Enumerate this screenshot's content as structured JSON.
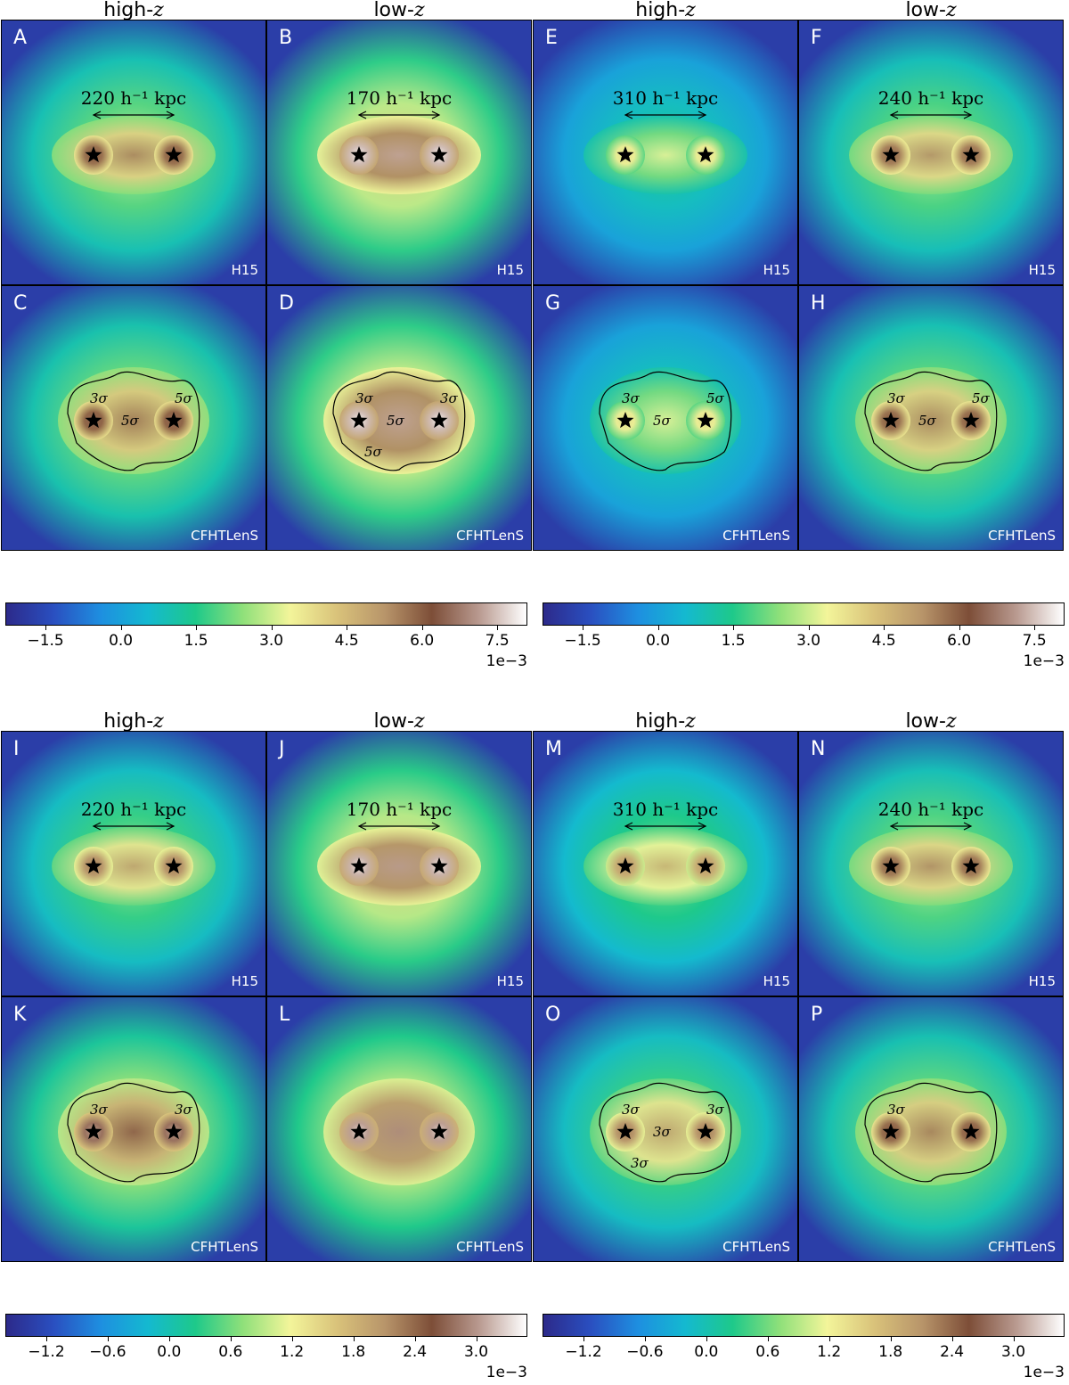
{
  "chart_data": [
    {
      "type": "heatmap",
      "group": "top-left",
      "column_titles": [
        "high-z",
        "low-z"
      ],
      "panels": [
        {
          "letter": "A",
          "source": "H15",
          "separation_label": "220 h⁻¹ kpc",
          "peak": 6.2,
          "contours": []
        },
        {
          "letter": "B",
          "source": "H15",
          "separation_label": "170 h⁻¹ kpc",
          "peak": 8.0,
          "contours": []
        },
        {
          "letter": "C",
          "source": "CFHTLenS",
          "peak": 6.4,
          "contours": [
            "3σ",
            "5σ",
            "5σ"
          ]
        },
        {
          "letter": "D",
          "source": "CFHTLenS",
          "peak": 8.0,
          "contours": [
            "3σ",
            "3σ",
            "5σ",
            "5σ"
          ]
        }
      ],
      "colorbar": {
        "ticks": [
          -1.5,
          0.0,
          1.5,
          3.0,
          4.5,
          6.0,
          7.5
        ],
        "tick_labels": [
          "−1.5",
          "0.0",
          "1.5",
          "3.0",
          "4.5",
          "6.0",
          "7.5"
        ],
        "range": [
          -2.3,
          8.1
        ],
        "offset": "1e−3"
      }
    },
    {
      "type": "heatmap",
      "group": "top-right",
      "column_titles": [
        "high-z",
        "low-z"
      ],
      "panels": [
        {
          "letter": "E",
          "source": "H15",
          "separation_label": "310 h⁻¹ kpc",
          "peak": 3.8,
          "contours": []
        },
        {
          "letter": "F",
          "source": "H15",
          "separation_label": "240 h⁻¹ kpc",
          "peak": 6.0,
          "contours": []
        },
        {
          "letter": "G",
          "source": "CFHTLenS",
          "peak": 3.8,
          "contours": [
            "3σ",
            "5σ",
            "5σ"
          ]
        },
        {
          "letter": "H",
          "source": "CFHTLenS",
          "peak": 6.2,
          "contours": [
            "3σ",
            "5σ",
            "5σ"
          ]
        }
      ],
      "colorbar": {
        "ticks": [
          -1.5,
          0.0,
          1.5,
          3.0,
          4.5,
          6.0,
          7.5
        ],
        "tick_labels": [
          "−1.5",
          "0.0",
          "1.5",
          "3.0",
          "4.5",
          "6.0",
          "7.5"
        ],
        "range": [
          -2.3,
          8.1
        ],
        "offset": "1e−3"
      }
    },
    {
      "type": "heatmap",
      "group": "bottom-left",
      "column_titles": [
        "high-z",
        "low-z"
      ],
      "panels": [
        {
          "letter": "I",
          "source": "H15",
          "separation_label": "220 h⁻¹ kpc",
          "peak": 2.3,
          "contours": []
        },
        {
          "letter": "J",
          "source": "H15",
          "separation_label": "170 h⁻¹ kpc",
          "peak": 3.4,
          "contours": []
        },
        {
          "letter": "K",
          "source": "CFHTLenS",
          "peak": 3.0,
          "contours": [
            "3σ",
            "3σ"
          ]
        },
        {
          "letter": "L",
          "source": "CFHTLenS",
          "peak": 3.3,
          "contours": []
        }
      ],
      "colorbar": {
        "ticks": [
          -1.2,
          -0.6,
          0.0,
          0.6,
          1.2,
          1.8,
          2.4,
          3.0
        ],
        "tick_labels": [
          "−1.2",
          "−0.6",
          "0.0",
          "0.6",
          "1.2",
          "1.8",
          "2.4",
          "3.0"
        ],
        "range": [
          -1.6,
          3.5
        ],
        "offset": "1e−3"
      }
    },
    {
      "type": "heatmap",
      "group": "bottom-right",
      "column_titles": [
        "high-z",
        "low-z"
      ],
      "panels": [
        {
          "letter": "M",
          "source": "H15",
          "separation_label": "310 h⁻¹ kpc",
          "peak": 2.1,
          "contours": []
        },
        {
          "letter": "N",
          "source": "H15",
          "separation_label": "240 h⁻¹ kpc",
          "peak": 2.5,
          "contours": []
        },
        {
          "letter": "O",
          "source": "CFHTLenS",
          "peak": 2.3,
          "contours": [
            "3σ",
            "3σ",
            "3σ",
            "3σ"
          ]
        },
        {
          "letter": "P",
          "source": "CFHTLenS",
          "peak": 2.6,
          "contours": [
            "3σ"
          ]
        }
      ],
      "colorbar": {
        "ticks": [
          -1.2,
          -0.6,
          0.0,
          0.6,
          1.2,
          1.8,
          2.4,
          3.0
        ],
        "tick_labels": [
          "−1.2",
          "−0.6",
          "0.0",
          "0.6",
          "1.2",
          "1.8",
          "2.4",
          "3.0"
        ],
        "range": [
          -1.6,
          3.5
        ],
        "offset": "1e−3"
      }
    }
  ],
  "colormap": [
    "#2c2a8a",
    "#2a4fc0",
    "#1e8fe0",
    "#14b9d0",
    "#1ec98a",
    "#8fe07a",
    "#f3f59a",
    "#d9c27a",
    "#b8956a",
    "#7d4e38",
    "#b99a90",
    "#ffffff"
  ]
}
